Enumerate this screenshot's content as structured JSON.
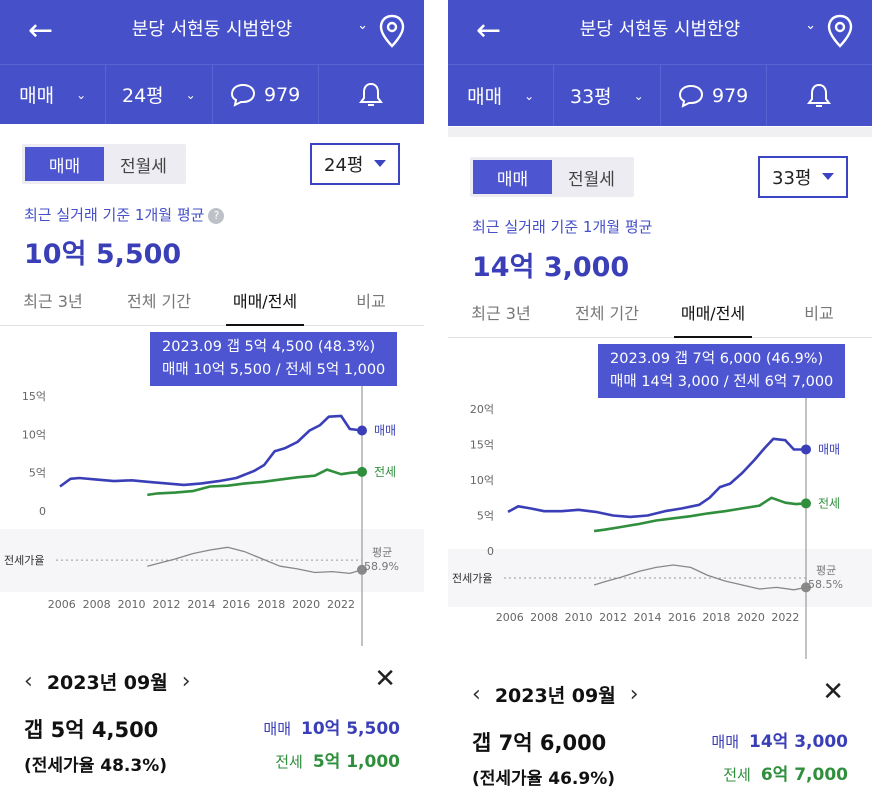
{
  "panels": [
    {
      "header": {
        "title": "분당 서현동 시범한양",
        "chevron": "⌄"
      },
      "subbar": {
        "type": "매매",
        "size": "24평",
        "comments": "979"
      },
      "segment": {
        "options": [
          "매매",
          "전월세"
        ],
        "active": 0
      },
      "dropdown": "24평",
      "avg_label": "최근 실거래 기준 1개월 평균",
      "avg_help": "?",
      "avg_price": "10억 5,500",
      "tabs": [
        "최근 3년",
        "전체 기간",
        "매매/전세",
        "비교"
      ],
      "active_tab": 2,
      "tooltip": {
        "line1": "2023.09  갭 5억 4,500 (48.3%)",
        "line2": "매매 10억 5,500 / 전세 5억 1,000"
      },
      "chart_data": {
        "type": "line",
        "x_ticks": [
          "2006",
          "2008",
          "2010",
          "2012",
          "2014",
          "2016",
          "2018",
          "2020",
          "2022"
        ],
        "y_ticks": [
          "15억",
          "10억",
          "5억",
          "0"
        ],
        "ylim": [
          0,
          15
        ],
        "series_labels": {
          "sale": "매매",
          "lease": "전세"
        },
        "ratio_label": "전세가율",
        "avg_label": "평균",
        "avg_value": "58.9%",
        "sale": [
          [
            2005.9,
            3.2
          ],
          [
            2006.5,
            4.2
          ],
          [
            2007,
            4.3
          ],
          [
            2008,
            4.1
          ],
          [
            2009,
            3.9
          ],
          [
            2010,
            4.0
          ],
          [
            2011,
            3.8
          ],
          [
            2012,
            3.6
          ],
          [
            2013,
            3.4
          ],
          [
            2014,
            3.6
          ],
          [
            2015,
            3.9
          ],
          [
            2016,
            4.3
          ],
          [
            2017,
            5.2
          ],
          [
            2017.6,
            6.0
          ],
          [
            2018.2,
            7.8
          ],
          [
            2018.8,
            8.2
          ],
          [
            2019.5,
            9.0
          ],
          [
            2020.2,
            10.5
          ],
          [
            2020.8,
            11.2
          ],
          [
            2021.3,
            12.3
          ],
          [
            2022,
            12.4
          ],
          [
            2022.5,
            10.7
          ],
          [
            2023.2,
            10.5
          ]
        ],
        "lease": [
          [
            2010.9,
            2.1
          ],
          [
            2011.5,
            2.3
          ],
          [
            2012.5,
            2.4
          ],
          [
            2013.5,
            2.6
          ],
          [
            2014.5,
            3.2
          ],
          [
            2015.5,
            3.3
          ],
          [
            2016.5,
            3.6
          ],
          [
            2017.5,
            3.8
          ],
          [
            2018.5,
            4.1
          ],
          [
            2019.5,
            4.4
          ],
          [
            2020.5,
            4.6
          ],
          [
            2021.2,
            5.4
          ],
          [
            2022,
            4.8
          ],
          [
            2022.6,
            5.0
          ],
          [
            2023.2,
            5.1
          ]
        ],
        "ratio": [
          [
            2010.9,
            52
          ],
          [
            2011.5,
            55
          ],
          [
            2012.5,
            60
          ],
          [
            2013.5,
            66
          ],
          [
            2014.5,
            70
          ],
          [
            2015.5,
            73
          ],
          [
            2016.5,
            68
          ],
          [
            2017.5,
            60
          ],
          [
            2018.5,
            52
          ],
          [
            2019.5,
            49
          ],
          [
            2020.5,
            45
          ],
          [
            2021.5,
            46
          ],
          [
            2022.5,
            44
          ],
          [
            2023.2,
            48
          ]
        ]
      },
      "detail": {
        "month": "2023년 09월",
        "gap": "갭 5억 4,500",
        "ratio": "(전세가율 48.3%)",
        "sale_key": "매매",
        "sale_val": "10억 5,500",
        "lease_key": "전세",
        "lease_val": "5억 1,000"
      }
    },
    {
      "header": {
        "title": "분당 서현동 시범한양",
        "chevron": "⌄"
      },
      "subbar": {
        "type": "매매",
        "size": "33평",
        "comments": "979"
      },
      "segment": {
        "options": [
          "매매",
          "전월세"
        ],
        "active": 0
      },
      "dropdown": "33평",
      "avg_label": "최근 실거래 기준 1개월 평균",
      "avg_help": "",
      "avg_price": "14억 3,000",
      "tabs": [
        "최근 3년",
        "전체 기간",
        "매매/전세",
        "비교"
      ],
      "active_tab": 2,
      "tooltip": {
        "line1": "2023.09  갭 7억 6,000 (46.9%)",
        "line2": "매매 14억 3,000 / 전세 6억 7,000"
      },
      "chart_data": {
        "type": "line",
        "x_ticks": [
          "2006",
          "2008",
          "2010",
          "2012",
          "2014",
          "2016",
          "2018",
          "2020",
          "2022"
        ],
        "y_ticks": [
          "20억",
          "15억",
          "10억",
          "5억",
          "0"
        ],
        "ylim": [
          0,
          20
        ],
        "series_labels": {
          "sale": "매매",
          "lease": "전세"
        },
        "ratio_label": "전세가율",
        "avg_label": "평균",
        "avg_value": "58.5%",
        "sale": [
          [
            2005.9,
            5.5
          ],
          [
            2006.5,
            6.3
          ],
          [
            2007.2,
            6.0
          ],
          [
            2008,
            5.6
          ],
          [
            2009,
            5.6
          ],
          [
            2010,
            5.8
          ],
          [
            2011,
            5.5
          ],
          [
            2012,
            5.0
          ],
          [
            2013,
            4.8
          ],
          [
            2014,
            5.0
          ],
          [
            2015,
            5.6
          ],
          [
            2016,
            6.0
          ],
          [
            2017,
            6.5
          ],
          [
            2017.6,
            7.5
          ],
          [
            2018.2,
            9.0
          ],
          [
            2018.8,
            9.5
          ],
          [
            2019.5,
            11.0
          ],
          [
            2020.2,
            12.8
          ],
          [
            2020.8,
            14.5
          ],
          [
            2021.3,
            15.8
          ],
          [
            2022,
            15.6
          ],
          [
            2022.5,
            14.3
          ],
          [
            2023.2,
            14.3
          ]
        ],
        "lease": [
          [
            2010.9,
            2.8
          ],
          [
            2011.5,
            3.0
          ],
          [
            2012.5,
            3.4
          ],
          [
            2013.5,
            3.8
          ],
          [
            2014.5,
            4.3
          ],
          [
            2015.5,
            4.6
          ],
          [
            2016.5,
            4.9
          ],
          [
            2017.5,
            5.3
          ],
          [
            2018.5,
            5.6
          ],
          [
            2019.5,
            6.0
          ],
          [
            2020.5,
            6.4
          ],
          [
            2021.2,
            7.5
          ],
          [
            2022,
            6.8
          ],
          [
            2022.6,
            6.6
          ],
          [
            2023.2,
            6.7
          ]
        ],
        "ratio": [
          [
            2010.9,
            50
          ],
          [
            2011.5,
            54
          ],
          [
            2012.5,
            60
          ],
          [
            2013.5,
            67
          ],
          [
            2014.5,
            72
          ],
          [
            2015.5,
            75
          ],
          [
            2016.5,
            72
          ],
          [
            2017.5,
            62
          ],
          [
            2018.5,
            55
          ],
          [
            2019.5,
            50
          ],
          [
            2020.5,
            45
          ],
          [
            2021.5,
            47
          ],
          [
            2022.5,
            44
          ],
          [
            2023.2,
            47
          ]
        ]
      },
      "detail": {
        "month": "2023년 09월",
        "gap": "갭 7억 6,000",
        "ratio": "(전세가율 46.9%)",
        "sale_key": "매매",
        "sale_val": "14억 3,000",
        "lease_key": "전세",
        "lease_val": "6억 7,000"
      }
    }
  ],
  "colors": {
    "header": "#4650c8",
    "sale": "#3a3fb8",
    "lease": "#2f8f3c",
    "ratio": "#888888",
    "tooltip": "#4d56d0"
  },
  "icons": {
    "back": "arrow-left-icon",
    "pin": "map-pin-icon",
    "comments": "speech-bubble-icon",
    "alert": "bell-icon",
    "close": "close-icon"
  }
}
